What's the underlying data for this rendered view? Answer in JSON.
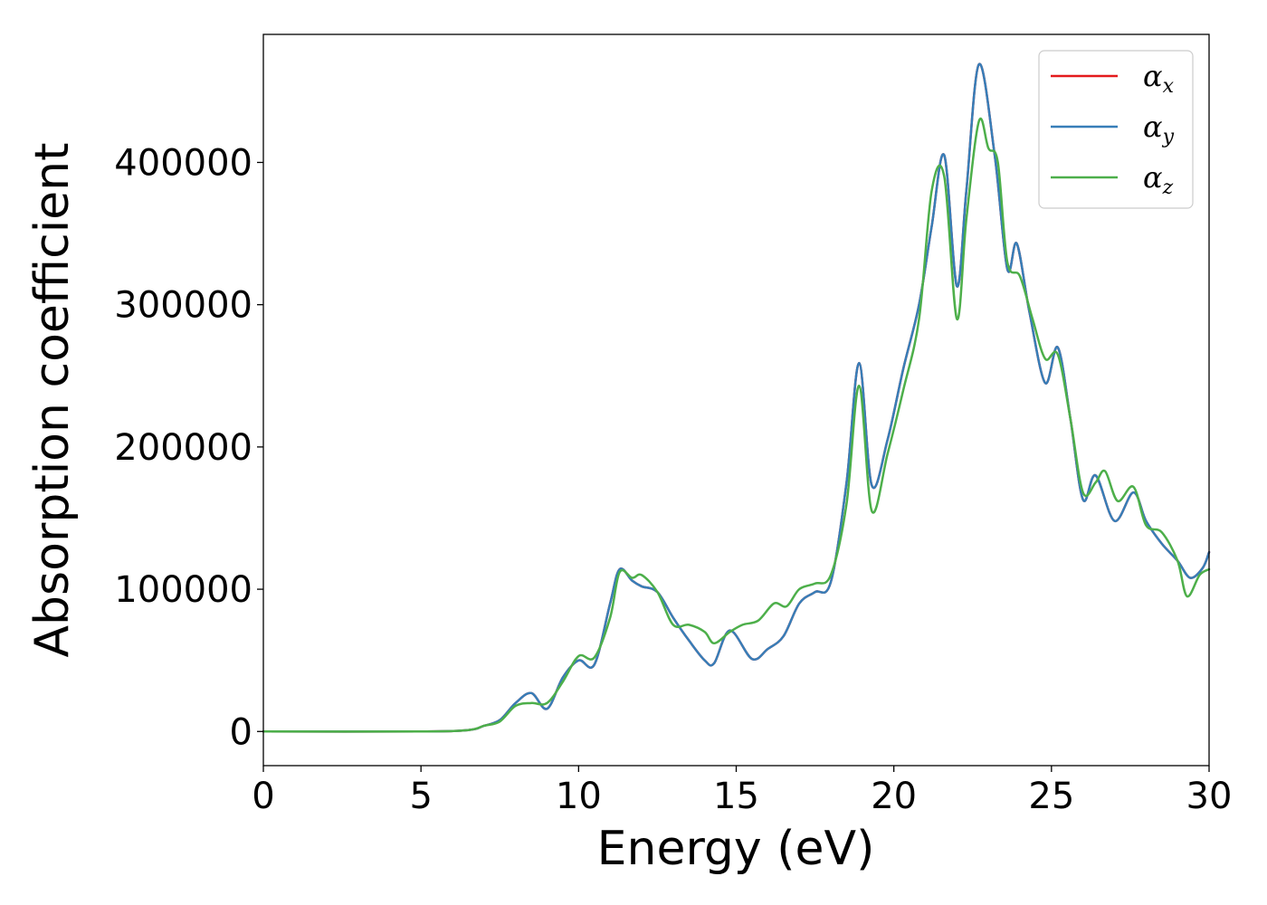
{
  "chart_data": {
    "type": "line",
    "xlabel": "Energy (eV)",
    "ylabel": "Absorption coefficient",
    "xlim": [
      0,
      30
    ],
    "ylim": [
      -24000,
      490000
    ],
    "xticks": [
      0,
      5,
      10,
      15,
      20,
      25,
      30
    ],
    "xtick_labels": [
      "0",
      "5",
      "10",
      "15",
      "20",
      "25",
      "30"
    ],
    "yticks": [
      0,
      100000,
      200000,
      300000,
      400000
    ],
    "ytick_labels": [
      "0",
      "100000",
      "200000",
      "300000",
      "400000"
    ],
    "grid": false,
    "legend": {
      "position": "top-right"
    },
    "series": [
      {
        "name": "αx",
        "symbol": "α",
        "subscript": "x",
        "color": "#e41a1c",
        "x": [
          0,
          5,
          6.5,
          7.0,
          7.5,
          8.0,
          8.5,
          9.0,
          9.5,
          10.0,
          10.5,
          11.0,
          11.3,
          11.7,
          12.0,
          12.5,
          13.0,
          13.5,
          14.0,
          14.3,
          14.8,
          15.5,
          16.0,
          16.5,
          17.0,
          17.5,
          18.0,
          18.5,
          18.9,
          19.3,
          19.8,
          20.3,
          20.8,
          21.2,
          21.6,
          22.0,
          22.3,
          22.7,
          23.2,
          23.6,
          23.9,
          24.3,
          24.8,
          25.2,
          25.6,
          26.0,
          26.4,
          27.0,
          27.6,
          28.0,
          28.5,
          29.0,
          29.4,
          29.8,
          30
        ],
        "y": [
          0,
          0,
          1000,
          4000,
          8000,
          20000,
          27000,
          16000,
          38000,
          50000,
          47000,
          90000,
          114000,
          106000,
          102000,
          98000,
          80000,
          64000,
          50000,
          48000,
          71000,
          51000,
          58000,
          67000,
          90000,
          98000,
          105000,
          175000,
          259000,
          173000,
          205000,
          255000,
          300000,
          355000,
          405000,
          313000,
          380000,
          469000,
          405000,
          325000,
          343000,
          295000,
          245000,
          270000,
          220000,
          163000,
          180000,
          148000,
          168000,
          148000,
          132000,
          120000,
          108000,
          115000,
          126000
        ]
      },
      {
        "name": "αy",
        "symbol": "α",
        "subscript": "y",
        "color": "#377eb8",
        "x": [
          0,
          5,
          6.5,
          7.0,
          7.5,
          8.0,
          8.5,
          9.0,
          9.5,
          10.0,
          10.5,
          11.0,
          11.3,
          11.7,
          12.0,
          12.5,
          13.0,
          13.5,
          14.0,
          14.3,
          14.8,
          15.5,
          16.0,
          16.5,
          17.0,
          17.5,
          18.0,
          18.5,
          18.9,
          19.3,
          19.8,
          20.3,
          20.8,
          21.2,
          21.6,
          22.0,
          22.3,
          22.7,
          23.2,
          23.6,
          23.9,
          24.3,
          24.8,
          25.2,
          25.6,
          26.0,
          26.4,
          27.0,
          27.6,
          28.0,
          28.5,
          29.0,
          29.4,
          29.8,
          30
        ],
        "y": [
          0,
          0,
          1000,
          4000,
          8000,
          20000,
          27000,
          16000,
          38000,
          50000,
          47000,
          90000,
          114000,
          106000,
          102000,
          98000,
          80000,
          64000,
          50000,
          48000,
          71000,
          51000,
          58000,
          67000,
          90000,
          98000,
          105000,
          175000,
          259000,
          173000,
          205000,
          255000,
          300000,
          355000,
          405000,
          313000,
          380000,
          469000,
          405000,
          325000,
          343000,
          295000,
          245000,
          270000,
          220000,
          163000,
          180000,
          148000,
          168000,
          148000,
          132000,
          120000,
          108000,
          115000,
          126000
        ]
      },
      {
        "name": "αz",
        "symbol": "α",
        "subscript": "z",
        "color": "#4daf4a",
        "x": [
          0,
          5,
          6.5,
          7.0,
          7.5,
          8.0,
          8.5,
          9.0,
          9.5,
          10.0,
          10.5,
          11.0,
          11.3,
          11.7,
          12.0,
          12.5,
          13.0,
          13.5,
          14.0,
          14.3,
          14.8,
          15.2,
          15.7,
          16.2,
          16.6,
          17.0,
          17.5,
          18.0,
          18.5,
          18.9,
          19.3,
          19.8,
          20.3,
          20.8,
          21.2,
          21.6,
          22.0,
          22.3,
          22.7,
          23.0,
          23.3,
          23.6,
          24.0,
          24.4,
          24.8,
          25.2,
          25.6,
          26.0,
          26.4,
          26.7,
          27.1,
          27.6,
          28.0,
          28.5,
          29.0,
          29.3,
          29.7,
          30
        ],
        "y": [
          0,
          0,
          1000,
          4000,
          7000,
          18000,
          20000,
          20000,
          35000,
          53000,
          52000,
          80000,
          112000,
          108000,
          110000,
          98000,
          75000,
          75000,
          70000,
          62000,
          70000,
          75000,
          78000,
          90000,
          88000,
          100000,
          104000,
          110000,
          160000,
          243000,
          155000,
          195000,
          240000,
          290000,
          380000,
          390000,
          290000,
          360000,
          429000,
          410000,
          400000,
          330000,
          320000,
          290000,
          262000,
          265000,
          220000,
          168000,
          175000,
          183000,
          162000,
          172000,
          145000,
          140000,
          120000,
          95000,
          110000,
          114000
        ]
      }
    ]
  }
}
